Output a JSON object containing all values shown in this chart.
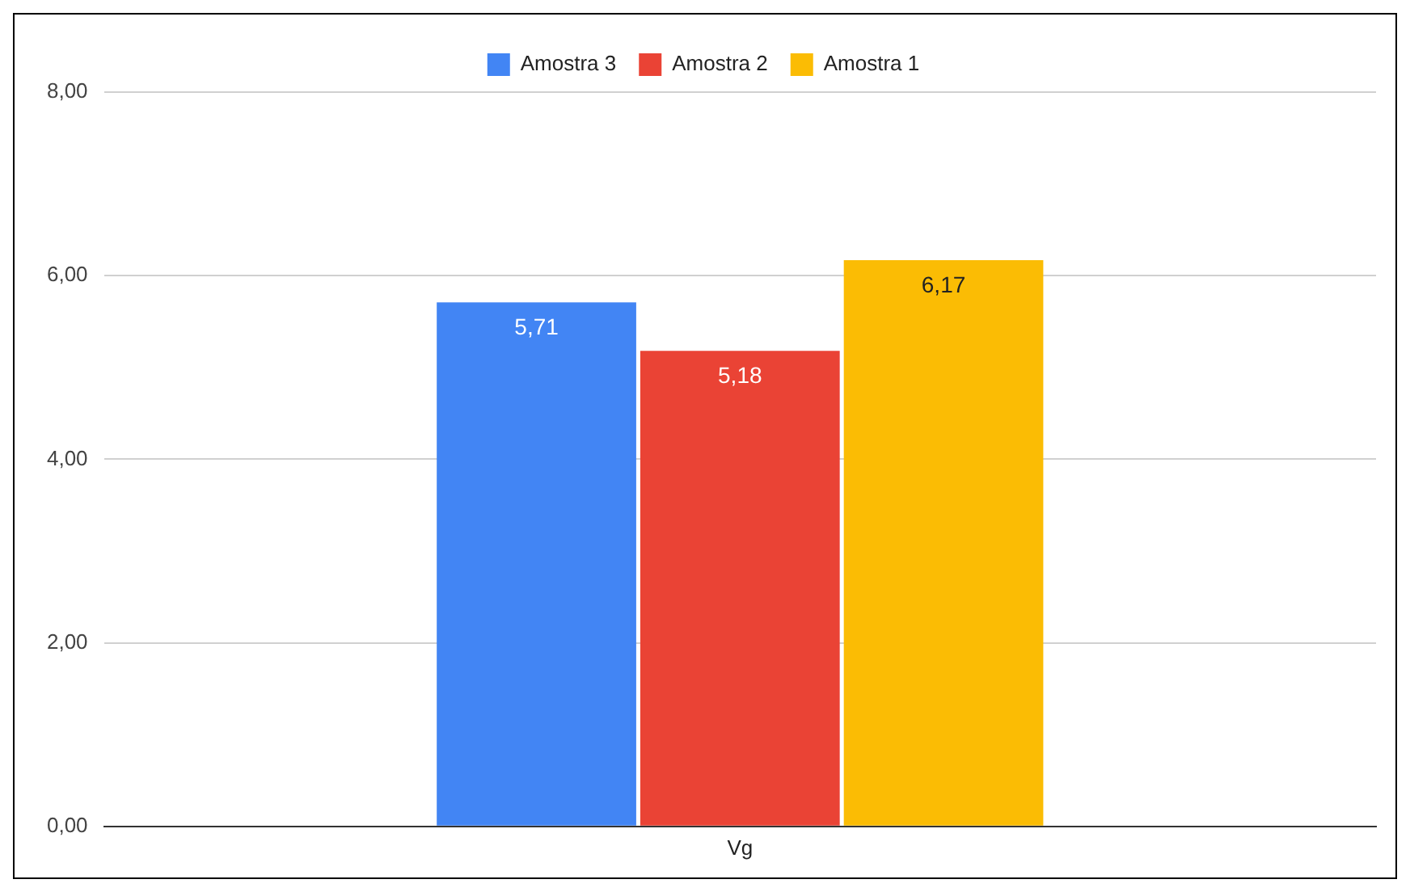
{
  "chart_data": {
    "type": "bar",
    "categories": [
      "Vg"
    ],
    "series": [
      {
        "name": "Amostra 3",
        "color": "#4285f4",
        "values": [
          5.71
        ],
        "value_labels": [
          "5,71"
        ]
      },
      {
        "name": "Amostra 2",
        "color": "#ea4335",
        "values": [
          5.18
        ],
        "value_labels": [
          "5,18"
        ]
      },
      {
        "name": "Amostra 1",
        "color": "#fbbc04",
        "values": [
          6.17
        ],
        "value_labels": [
          "6,17"
        ]
      }
    ],
    "ylim": [
      0,
      8
    ],
    "yticks": [
      {
        "value": 0,
        "label": "0,00"
      },
      {
        "value": 2,
        "label": "2,00"
      },
      {
        "value": 4,
        "label": "4,00"
      },
      {
        "value": 6,
        "label": "6,00"
      },
      {
        "value": 8,
        "label": "8,00"
      }
    ],
    "grid": "y",
    "legend": "top"
  }
}
